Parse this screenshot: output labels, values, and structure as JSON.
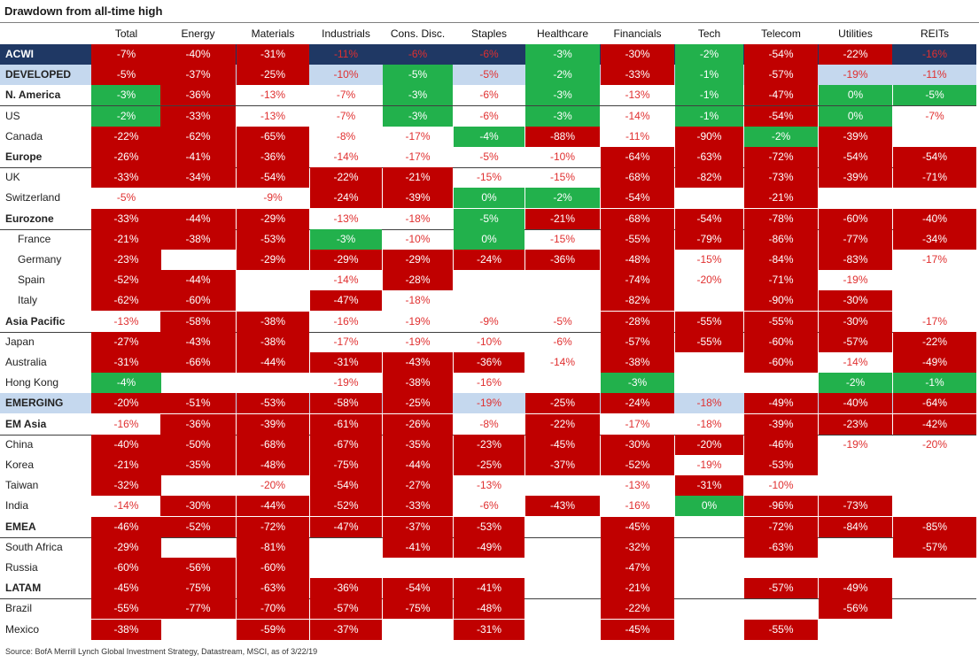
{
  "title": "Drawdown from all-time high",
  "source": "Source: BofA Merrill Lynch Global Investment Strategy, Datastream, MSCI, as of 3/22/19",
  "colors": {
    "red": "#c00000",
    "green": "#22b14c",
    "navy": "#1f3864",
    "light_blue": "#c5d8ee",
    "text_red": "#e03030"
  },
  "chart_data": {
    "type": "table",
    "columns": [
      "Total",
      "Energy",
      "Materials",
      "Industrials",
      "Cons. Disc.",
      "Staples",
      "Healthcare",
      "Financials",
      "Tech",
      "Telecom",
      "Utilities",
      "REITs"
    ],
    "rows": [
      {
        "label": "ACWI",
        "style": "navy",
        "values": [
          "-7%",
          "-40%",
          "-31%",
          "-11%",
          "-6%",
          "-6%",
          "-3%",
          "-30%",
          "-2%",
          "-54%",
          "-22%",
          "-16%"
        ],
        "colors": [
          "red",
          "red",
          "red",
          "navy",
          "navy",
          "navy",
          "green",
          "red",
          "green",
          "red",
          "red",
          "navy"
        ]
      },
      {
        "label": "DEVELOPED",
        "style": "lightblue",
        "values": [
          "-5%",
          "-37%",
          "-25%",
          "-10%",
          "-5%",
          "-5%",
          "-2%",
          "-33%",
          "-1%",
          "-57%",
          "-19%",
          "-11%"
        ],
        "colors": [
          "red",
          "red",
          "red",
          "lightblue",
          "green",
          "lightblue",
          "green",
          "red",
          "green",
          "red",
          "lightblue",
          "lightblue"
        ]
      },
      {
        "label": "N. America",
        "style": "bold",
        "values": [
          "-3%",
          "-36%",
          "-13%",
          "-7%",
          "-3%",
          "-6%",
          "-3%",
          "-13%",
          "-1%",
          "-47%",
          "0%",
          "-5%"
        ],
        "colors": [
          "green",
          "red",
          "white",
          "white",
          "green",
          "white",
          "green",
          "white",
          "green",
          "red",
          "green",
          "green"
        ]
      },
      {
        "label": "US",
        "style": "",
        "values": [
          "-2%",
          "-33%",
          "-13%",
          "-7%",
          "-3%",
          "-6%",
          "-3%",
          "-14%",
          "-1%",
          "-54%",
          "0%",
          "-7%"
        ],
        "colors": [
          "green",
          "red",
          "white",
          "white",
          "green",
          "white",
          "green",
          "white",
          "green",
          "red",
          "green",
          "white"
        ]
      },
      {
        "label": "Canada",
        "style": "",
        "values": [
          "-22%",
          "-62%",
          "-65%",
          "-8%",
          "-17%",
          "-4%",
          "-88%",
          "-11%",
          "-90%",
          "-2%",
          "-39%",
          ""
        ],
        "colors": [
          "red",
          "red",
          "red",
          "white",
          "white",
          "green",
          "red",
          "white",
          "red",
          "green",
          "red",
          "none"
        ]
      },
      {
        "label": "Europe",
        "style": "bold",
        "values": [
          "-26%",
          "-41%",
          "-36%",
          "-14%",
          "-17%",
          "-5%",
          "-10%",
          "-64%",
          "-63%",
          "-72%",
          "-54%",
          "-54%"
        ],
        "colors": [
          "red",
          "red",
          "red",
          "white",
          "white",
          "white",
          "white",
          "red",
          "red",
          "red",
          "red",
          "red"
        ]
      },
      {
        "label": "UK",
        "style": "",
        "values": [
          "-33%",
          "-34%",
          "-54%",
          "-22%",
          "-21%",
          "-15%",
          "-15%",
          "-68%",
          "-82%",
          "-73%",
          "-39%",
          "-71%"
        ],
        "colors": [
          "red",
          "red",
          "red",
          "red",
          "red",
          "white",
          "white",
          "red",
          "red",
          "red",
          "red",
          "red"
        ]
      },
      {
        "label": "Switzerland",
        "style": "",
        "values": [
          "-5%",
          "",
          "-9%",
          "-24%",
          "-39%",
          "0%",
          "-2%",
          "-54%",
          "",
          "-21%",
          "",
          ""
        ],
        "colors": [
          "white",
          "none",
          "white",
          "red",
          "red",
          "green",
          "green",
          "red",
          "none",
          "red",
          "none",
          "none"
        ]
      },
      {
        "label": "Eurozone",
        "style": "bold",
        "values": [
          "-33%",
          "-44%",
          "-29%",
          "-13%",
          "-18%",
          "-5%",
          "-21%",
          "-68%",
          "-54%",
          "-78%",
          "-60%",
          "-40%"
        ],
        "colors": [
          "red",
          "red",
          "red",
          "white",
          "white",
          "green",
          "red",
          "red",
          "red",
          "red",
          "red",
          "red"
        ]
      },
      {
        "label": "France",
        "style": "indent",
        "values": [
          "-21%",
          "-38%",
          "-53%",
          "-3%",
          "-10%",
          "0%",
          "-15%",
          "-55%",
          "-79%",
          "-86%",
          "-77%",
          "-34%"
        ],
        "colors": [
          "red",
          "red",
          "red",
          "green",
          "white",
          "green",
          "white",
          "red",
          "red",
          "red",
          "red",
          "red"
        ]
      },
      {
        "label": "Germany",
        "style": "indent",
        "values": [
          "-23%",
          "",
          "-29%",
          "-29%",
          "-29%",
          "-24%",
          "-36%",
          "-48%",
          "-15%",
          "-84%",
          "-83%",
          "-17%"
        ],
        "colors": [
          "red",
          "none",
          "red",
          "red",
          "red",
          "red",
          "red",
          "red",
          "white",
          "red",
          "red",
          "white"
        ]
      },
      {
        "label": "Spain",
        "style": "indent",
        "values": [
          "-52%",
          "-44%",
          "",
          "-14%",
          "-28%",
          "",
          "",
          "-74%",
          "-20%",
          "-71%",
          "-19%",
          ""
        ],
        "colors": [
          "red",
          "red",
          "none",
          "white",
          "red",
          "none",
          "none",
          "red",
          "white",
          "red",
          "white",
          "none"
        ]
      },
      {
        "label": "Italy",
        "style": "indent",
        "values": [
          "-62%",
          "-60%",
          "",
          "-47%",
          "-18%",
          "",
          "",
          "-82%",
          "",
          "-90%",
          "-30%",
          ""
        ],
        "colors": [
          "red",
          "red",
          "none",
          "red",
          "white",
          "none",
          "none",
          "red",
          "none",
          "red",
          "red",
          "none"
        ]
      },
      {
        "label": "Asia Pacific",
        "style": "bold",
        "values": [
          "-13%",
          "-58%",
          "-38%",
          "-16%",
          "-19%",
          "-9%",
          "-5%",
          "-28%",
          "-55%",
          "-55%",
          "-30%",
          "-17%"
        ],
        "colors": [
          "white",
          "red",
          "red",
          "white",
          "white",
          "white",
          "white",
          "red",
          "red",
          "red",
          "red",
          "white"
        ]
      },
      {
        "label": "Japan",
        "style": "",
        "values": [
          "-27%",
          "-43%",
          "-38%",
          "-17%",
          "-19%",
          "-10%",
          "-6%",
          "-57%",
          "-55%",
          "-60%",
          "-57%",
          "-22%"
        ],
        "colors": [
          "red",
          "red",
          "red",
          "white",
          "white",
          "white",
          "white",
          "red",
          "red",
          "red",
          "red",
          "red"
        ]
      },
      {
        "label": "Australia",
        "style": "",
        "values": [
          "-31%",
          "-66%",
          "-44%",
          "-31%",
          "-43%",
          "-36%",
          "-14%",
          "-38%",
          "",
          "-60%",
          "-14%",
          "-49%"
        ],
        "colors": [
          "red",
          "red",
          "red",
          "red",
          "red",
          "red",
          "white",
          "red",
          "none",
          "red",
          "white",
          "red"
        ]
      },
      {
        "label": "Hong Kong",
        "style": "",
        "values": [
          "-4%",
          "",
          "",
          "-19%",
          "-38%",
          "-16%",
          "",
          "-3%",
          "",
          "",
          "-2%",
          "-1%"
        ],
        "colors": [
          "green",
          "none",
          "none",
          "white",
          "red",
          "white",
          "none",
          "green",
          "none",
          "none",
          "green",
          "green"
        ]
      },
      {
        "label": "EMERGING",
        "style": "lightblue",
        "values": [
          "-20%",
          "-51%",
          "-53%",
          "-58%",
          "-25%",
          "-19%",
          "-25%",
          "-24%",
          "-18%",
          "-49%",
          "-40%",
          "-64%"
        ],
        "colors": [
          "red",
          "red",
          "red",
          "red",
          "red",
          "lightblue",
          "red",
          "red",
          "lightblue",
          "red",
          "red",
          "red"
        ]
      },
      {
        "label": "EM Asia",
        "style": "bold",
        "values": [
          "-16%",
          "-36%",
          "-39%",
          "-61%",
          "-26%",
          "-8%",
          "-22%",
          "-17%",
          "-18%",
          "-39%",
          "-23%",
          "-42%"
        ],
        "colors": [
          "white",
          "red",
          "red",
          "red",
          "red",
          "white",
          "red",
          "white",
          "white",
          "red",
          "red",
          "red"
        ]
      },
      {
        "label": "China",
        "style": "",
        "values": [
          "-40%",
          "-50%",
          "-68%",
          "-67%",
          "-35%",
          "-23%",
          "-45%",
          "-30%",
          "-20%",
          "-46%",
          "-19%",
          "-20%"
        ],
        "colors": [
          "red",
          "red",
          "red",
          "red",
          "red",
          "red",
          "red",
          "red",
          "red",
          "red",
          "white",
          "white"
        ]
      },
      {
        "label": "Korea",
        "style": "",
        "values": [
          "-21%",
          "-35%",
          "-48%",
          "-75%",
          "-44%",
          "-25%",
          "-37%",
          "-52%",
          "-19%",
          "-53%",
          "",
          ""
        ],
        "colors": [
          "red",
          "red",
          "red",
          "red",
          "red",
          "red",
          "red",
          "red",
          "white",
          "red",
          "none",
          "none"
        ]
      },
      {
        "label": "Taiwan",
        "style": "",
        "values": [
          "-32%",
          "",
          "-20%",
          "-54%",
          "-27%",
          "-13%",
          "",
          "-13%",
          "-31%",
          "-10%",
          "",
          ""
        ],
        "colors": [
          "red",
          "none",
          "white",
          "red",
          "red",
          "white",
          "none",
          "white",
          "red",
          "white",
          "none",
          "none"
        ]
      },
      {
        "label": "India",
        "style": "",
        "values": [
          "-14%",
          "-30%",
          "-44%",
          "-52%",
          "-33%",
          "-6%",
          "-43%",
          "-16%",
          "0%",
          "-96%",
          "-73%",
          ""
        ],
        "colors": [
          "white",
          "red",
          "red",
          "red",
          "red",
          "white",
          "red",
          "white",
          "green",
          "red",
          "red",
          "none"
        ]
      },
      {
        "label": "EMEA",
        "style": "bold",
        "values": [
          "-46%",
          "-52%",
          "-72%",
          "-47%",
          "-37%",
          "-53%",
          "",
          "-45%",
          "",
          "-72%",
          "-84%",
          "-85%"
        ],
        "colors": [
          "red",
          "red",
          "red",
          "red",
          "red",
          "red",
          "none",
          "red",
          "none",
          "red",
          "red",
          "red"
        ]
      },
      {
        "label": "South Africa",
        "style": "",
        "values": [
          "-29%",
          "",
          "-81%",
          "",
          "-41%",
          "-49%",
          "",
          "-32%",
          "",
          "-63%",
          "",
          "-57%"
        ],
        "colors": [
          "red",
          "none",
          "red",
          "none",
          "red",
          "red",
          "none",
          "red",
          "none",
          "red",
          "none",
          "red"
        ]
      },
      {
        "label": "Russia",
        "style": "",
        "values": [
          "-60%",
          "-56%",
          "-60%",
          "",
          "",
          "",
          "",
          "-47%",
          "",
          "",
          "",
          ""
        ],
        "colors": [
          "red",
          "red",
          "red",
          "none",
          "none",
          "none",
          "none",
          "red",
          "none",
          "none",
          "none",
          "none"
        ]
      },
      {
        "label": "LATAM",
        "style": "bold",
        "values": [
          "-45%",
          "-75%",
          "-63%",
          "-36%",
          "-54%",
          "-41%",
          "",
          "-21%",
          "",
          "-57%",
          "-49%",
          ""
        ],
        "colors": [
          "red",
          "red",
          "red",
          "red",
          "red",
          "red",
          "none",
          "red",
          "none",
          "red",
          "red",
          "none"
        ]
      },
      {
        "label": "Brazil",
        "style": "",
        "values": [
          "-55%",
          "-77%",
          "-70%",
          "-57%",
          "-75%",
          "-48%",
          "",
          "-22%",
          "",
          "",
          "-56%",
          ""
        ],
        "colors": [
          "red",
          "red",
          "red",
          "red",
          "red",
          "red",
          "none",
          "red",
          "none",
          "none",
          "red",
          "none"
        ]
      },
      {
        "label": "Mexico",
        "style": "",
        "values": [
          "-38%",
          "",
          "-59%",
          "-37%",
          "",
          "-31%",
          "",
          "-45%",
          "",
          "-55%",
          "",
          ""
        ],
        "colors": [
          "red",
          "none",
          "red",
          "red",
          "none",
          "red",
          "none",
          "red",
          "none",
          "red",
          "none",
          "none"
        ]
      }
    ]
  }
}
